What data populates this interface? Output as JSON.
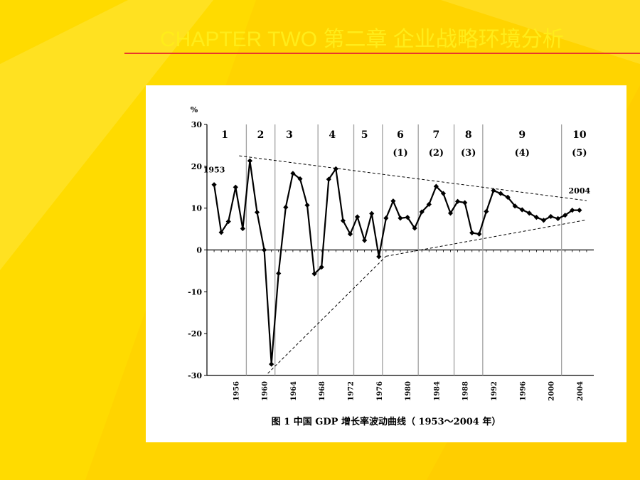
{
  "slide": {
    "title": "CHAPTER TWO     第二章  企业战略环境分析",
    "colors": {
      "background": "#ffd400",
      "accent_light": "#ffe84a",
      "rule": "#e8382b",
      "title_text": "#ffec1a"
    }
  },
  "chart_data": {
    "type": "line",
    "title": "图 1   中国 GDP 增长率波动曲线（ 1953～2004 年）",
    "ylabel": "%",
    "xlabel": "",
    "ylim": [
      -30,
      30
    ],
    "xlim": [
      1952,
      2006
    ],
    "yticks": [
      30,
      20,
      10,
      0,
      -10,
      -20,
      -30
    ],
    "xticks": [
      1956,
      1960,
      1964,
      1968,
      1972,
      1976,
      1980,
      1984,
      1988,
      1992,
      1996,
      2000,
      2004
    ],
    "grid": false,
    "series": [
      {
        "x": [
          1953,
          1954,
          1955,
          1956,
          1957,
          1958,
          1959,
          1960,
          1961,
          1962,
          1963,
          1964,
          1965,
          1966,
          1967,
          1968,
          1969,
          1970,
          1971,
          1972,
          1973,
          1974,
          1975,
          1976,
          1977,
          1978,
          1979,
          1980,
          1981,
          1982,
          1983,
          1984,
          1985,
          1986,
          1987,
          1988,
          1989,
          1990,
          1991,
          1992,
          1993,
          1994,
          1995,
          1996,
          1997,
          1998,
          1999,
          2000,
          2001,
          2002,
          2003,
          2004
        ],
        "y": [
          15.6,
          4.2,
          6.8,
          15.0,
          5.1,
          21.3,
          9.0,
          0.0,
          -27.3,
          -5.6,
          10.2,
          18.3,
          17.0,
          10.7,
          -5.7,
          -4.1,
          16.9,
          19.4,
          7.0,
          3.8,
          7.9,
          2.3,
          8.7,
          -1.6,
          7.6,
          11.7,
          7.6,
          7.8,
          5.2,
          9.1,
          10.9,
          15.2,
          13.5,
          8.8,
          11.6,
          11.3,
          4.1,
          3.8,
          9.2,
          14.2,
          13.5,
          12.6,
          10.5,
          9.6,
          8.8,
          7.8,
          7.1,
          8.0,
          7.5,
          8.3,
          9.5,
          9.5
        ]
      }
    ],
    "period_dividers": [
      1957.5,
      1961.5,
      1967.5,
      1972.5,
      1976.5,
      1981.5,
      1986.5,
      1990.5,
      2001.5
    ],
    "period_labels": [
      {
        "x": 1954.5,
        "num": "1",
        "sub": ""
      },
      {
        "x": 1959.5,
        "num": "2",
        "sub": ""
      },
      {
        "x": 1963.5,
        "num": "3",
        "sub": ""
      },
      {
        "x": 1969.5,
        "num": "4",
        "sub": ""
      },
      {
        "x": 1974.0,
        "num": "5",
        "sub": ""
      },
      {
        "x": 1979.0,
        "num": "6",
        "sub": "(1)"
      },
      {
        "x": 1984.0,
        "num": "7",
        "sub": "(2)"
      },
      {
        "x": 1988.5,
        "num": "8",
        "sub": "(3)"
      },
      {
        "x": 1996.0,
        "num": "9",
        "sub": "(4)"
      },
      {
        "x": 2004.0,
        "num": "10",
        "sub": "(5)"
      }
    ],
    "annotations": [
      {
        "label": "1953",
        "x": 1953,
        "y": 18.5
      },
      {
        "label": "2004",
        "x": 2004,
        "y": 13.5
      }
    ],
    "trend_lines": [
      {
        "from": [
          1956.5,
          22.5
        ],
        "to": [
          2005,
          11.8
        ]
      },
      {
        "from": [
          1960.5,
          -29.5
        ],
        "to": [
          1977,
          -1.5
        ]
      },
      {
        "from": [
          1977,
          -1.5
        ],
        "to": [
          2005,
          7.2
        ]
      }
    ]
  }
}
